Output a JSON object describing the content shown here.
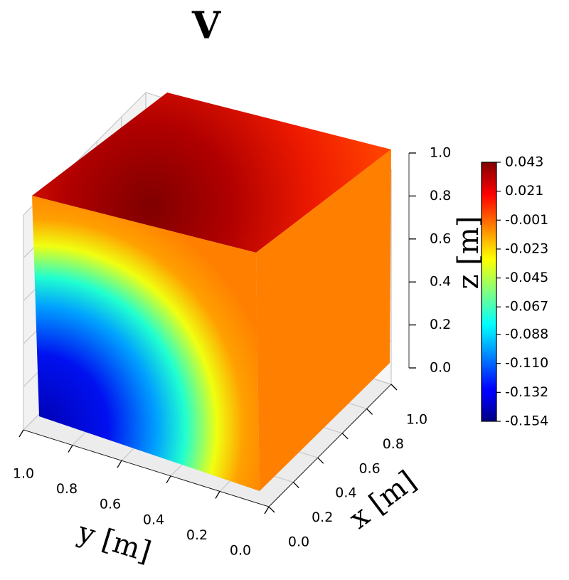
{
  "chart_data": {
    "type": "scatter3d",
    "title": "V",
    "xlabel": "x [m]",
    "ylabel": "y [m]",
    "zlabel": "z [m]",
    "xlim": [
      0,
      1
    ],
    "ylim": [
      0,
      1
    ],
    "zlim": [
      0,
      1
    ],
    "xticks": [
      {
        "value": 0,
        "label": "0.0"
      },
      0.2,
      0.4,
      0.6,
      0.8,
      {
        "value": 1,
        "label": "1.0"
      }
    ],
    "yticks": [
      {
        "value": 0,
        "label": "0.0"
      },
      0.2,
      0.4,
      0.6,
      0.8,
      {
        "value": 1,
        "label": "1.0"
      }
    ],
    "zticks": [
      {
        "value": 0,
        "label": "0.0"
      },
      0.2,
      0.4,
      0.6,
      0.8,
      {
        "value": 1,
        "label": "1.0"
      }
    ],
    "grid": true,
    "colorbar": {
      "colormap": "jet",
      "lim": [
        -0.154,
        0.043
      ],
      "ticks": [
        -0.154,
        -0.132,
        {
          "value": -0.11,
          "label": "-0.110"
        },
        -0.088,
        -0.067,
        -0.045,
        -0.023,
        -0.001,
        0.021,
        0.043
      ]
    }
  }
}
